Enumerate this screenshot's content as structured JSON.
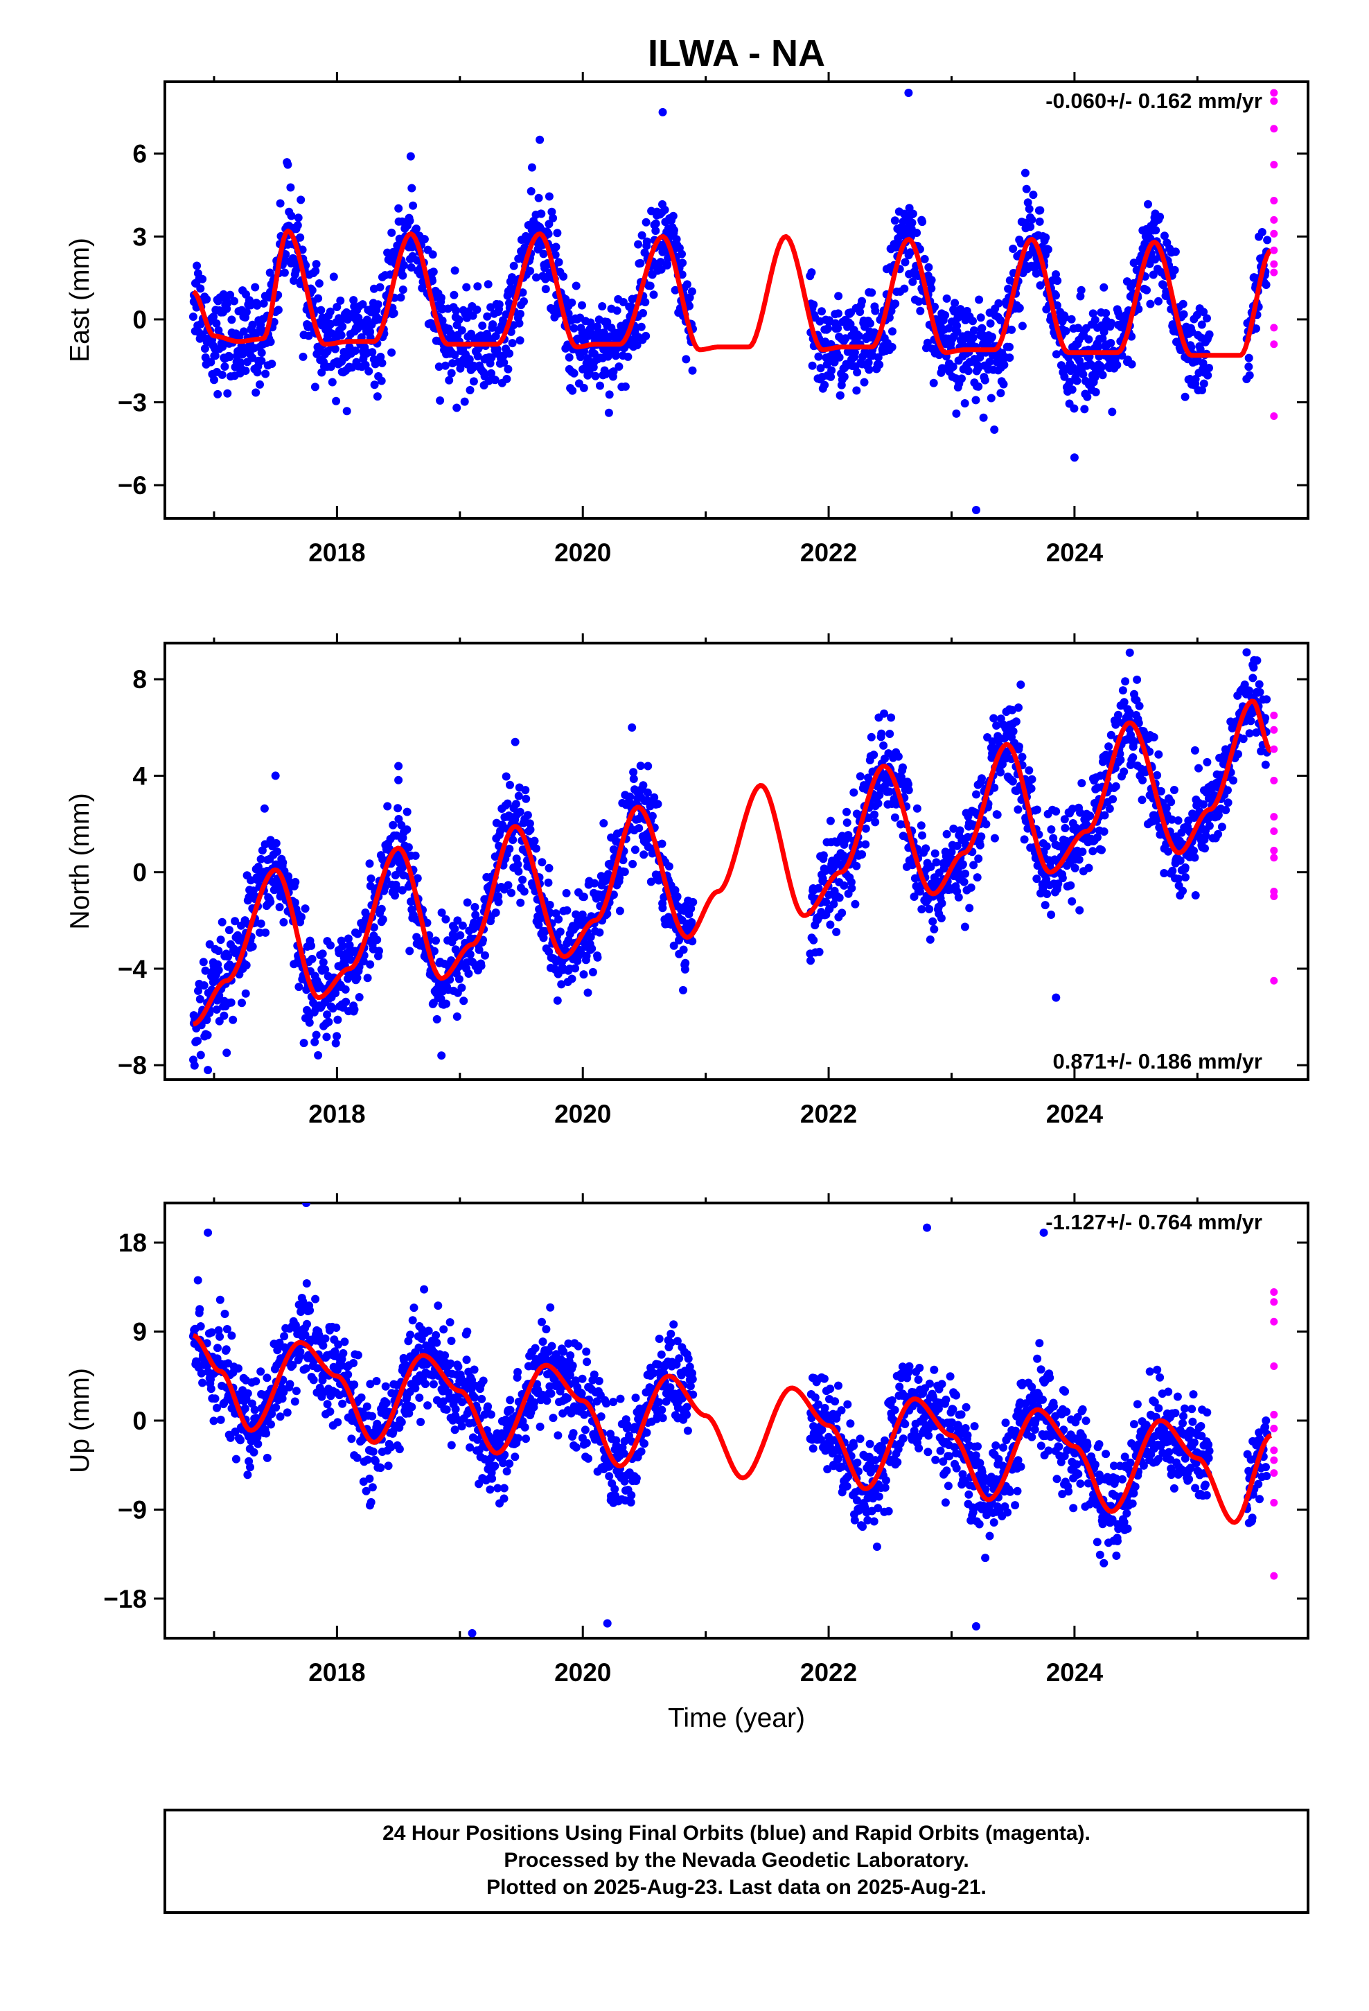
{
  "title": "ILWA - NA",
  "xlabel": "Time (year)",
  "footer_lines": [
    "24 Hour Positions Using Final Orbits (blue) and Rapid Orbits (magenta).",
    "Processed by the Nevada Geodetic Laboratory.",
    "Plotted on 2025-Aug-23. Last data on 2025-Aug-21."
  ],
  "colors": {
    "final": "#0000ff",
    "rapid": "#ff00ff",
    "model": "#ff0000",
    "frame": "#000000"
  },
  "chart_data": [
    {
      "type": "scatter",
      "ylabel": "East (mm)",
      "rate_label": "-0.060+/- 0.162 mm/yr",
      "xlim": [
        2016.6,
        2025.9
      ],
      "ylim": [
        -7.2,
        8.6
      ],
      "x_ticks": [
        2018,
        2020,
        2022,
        2024
      ],
      "y_ticks": [
        -6,
        -3,
        0,
        3,
        6
      ],
      "model_points": [
        [
          2016.83,
          1.0
        ],
        [
          2017.0,
          -0.6
        ],
        [
          2017.2,
          -0.8
        ],
        [
          2017.4,
          -0.7
        ],
        [
          2017.6,
          3.2
        ],
        [
          2017.9,
          -0.9
        ],
        [
          2018.1,
          -0.8
        ],
        [
          2018.3,
          -0.8
        ],
        [
          2018.6,
          3.1
        ],
        [
          2018.9,
          -0.9
        ],
        [
          2019.1,
          -0.9
        ],
        [
          2019.3,
          -0.9
        ],
        [
          2019.65,
          3.1
        ],
        [
          2019.95,
          -1.0
        ],
        [
          2020.1,
          -0.9
        ],
        [
          2020.3,
          -0.9
        ],
        [
          2020.65,
          3.0
        ],
        [
          2020.95,
          -1.1
        ],
        [
          2021.1,
          -1.0
        ],
        [
          2021.35,
          -1.0
        ],
        [
          2021.65,
          3.0
        ],
        [
          2021.95,
          -1.1
        ],
        [
          2022.1,
          -1.0
        ],
        [
          2022.35,
          -1.0
        ],
        [
          2022.65,
          2.9
        ],
        [
          2022.95,
          -1.2
        ],
        [
          2023.1,
          -1.1
        ],
        [
          2023.35,
          -1.1
        ],
        [
          2023.65,
          2.9
        ],
        [
          2023.95,
          -1.2
        ],
        [
          2024.1,
          -1.2
        ],
        [
          2024.35,
          -1.2
        ],
        [
          2024.65,
          2.8
        ],
        [
          2024.95,
          -1.3
        ],
        [
          2025.1,
          -1.3
        ],
        [
          2025.35,
          -1.3
        ],
        [
          2025.6,
          2.5
        ]
      ],
      "rapid_points": [
        [
          2025.6,
          8.2
        ],
        [
          2025.6,
          7.9
        ],
        [
          2025.6,
          6.9
        ],
        [
          2025.6,
          5.6
        ],
        [
          2025.6,
          4.3
        ],
        [
          2025.6,
          3.6
        ],
        [
          2025.6,
          3.1
        ],
        [
          2025.6,
          2.5
        ],
        [
          2025.6,
          2.0
        ],
        [
          2025.6,
          1.7
        ],
        [
          2025.6,
          -0.3
        ],
        [
          2025.6,
          -0.9
        ],
        [
          2025.6,
          -3.5
        ]
      ],
      "final_series": {
        "segments": [
          [
            2016.83,
            2020.9
          ],
          [
            2021.85,
            2025.1
          ],
          [
            2025.4,
            2025.57
          ]
        ],
        "outliers": [
          [
            2022.65,
            8.2
          ],
          [
            2020.65,
            7.5
          ],
          [
            2019.65,
            6.5
          ],
          [
            2018.6,
            5.9
          ],
          [
            2017.6,
            5.6
          ],
          [
            2023.6,
            5.3
          ],
          [
            2023.2,
            -6.9
          ],
          [
            2024.0,
            -5.0
          ]
        ],
        "note": "Daily East positions; seasonal envelope plotted around the model curve."
      }
    },
    {
      "type": "scatter",
      "ylabel": "North (mm)",
      "rate_label": "0.871+/- 0.186 mm/yr",
      "xlim": [
        2016.6,
        2025.9
      ],
      "ylim": [
        -8.6,
        9.5
      ],
      "x_ticks": [
        2018,
        2020,
        2022,
        2024
      ],
      "y_ticks": [
        -8,
        -4,
        0,
        4,
        8
      ],
      "model_points": [
        [
          2016.83,
          -6.3
        ],
        [
          2017.1,
          -4.5
        ],
        [
          2017.5,
          0.1
        ],
        [
          2017.85,
          -5.2
        ],
        [
          2018.1,
          -4.0
        ],
        [
          2018.5,
          1.0
        ],
        [
          2018.85,
          -4.4
        ],
        [
          2019.1,
          -3.0
        ],
        [
          2019.45,
          1.9
        ],
        [
          2019.85,
          -3.5
        ],
        [
          2020.1,
          -2.0
        ],
        [
          2020.45,
          2.7
        ],
        [
          2020.85,
          -2.7
        ],
        [
          2021.1,
          -0.8
        ],
        [
          2021.45,
          3.6
        ],
        [
          2021.8,
          -1.8
        ],
        [
          2022.1,
          0.0
        ],
        [
          2022.45,
          4.4
        ],
        [
          2022.85,
          -0.9
        ],
        [
          2023.1,
          0.8
        ],
        [
          2023.45,
          5.3
        ],
        [
          2023.8,
          0.0
        ],
        [
          2024.1,
          1.7
        ],
        [
          2024.45,
          6.2
        ],
        [
          2024.85,
          0.8
        ],
        [
          2025.1,
          2.6
        ],
        [
          2025.45,
          7.1
        ],
        [
          2025.6,
          5.0
        ]
      ],
      "rapid_points": [
        [
          2025.6,
          6.5
        ],
        [
          2025.6,
          5.9
        ],
        [
          2025.6,
          5.1
        ],
        [
          2025.6,
          3.8
        ],
        [
          2025.6,
          2.3
        ],
        [
          2025.6,
          1.7
        ],
        [
          2025.6,
          0.9
        ],
        [
          2025.6,
          0.6
        ],
        [
          2025.6,
          -0.8
        ],
        [
          2025.6,
          -1.0
        ],
        [
          2025.6,
          -4.5
        ]
      ],
      "final_series": {
        "segments": [
          [
            2016.83,
            2020.9
          ],
          [
            2021.85,
            2025.57
          ]
        ],
        "outliers": [
          [
            2024.45,
            9.1
          ],
          [
            2025.45,
            8.6
          ],
          [
            2020.4,
            6.0
          ],
          [
            2017.5,
            4.0
          ],
          [
            2018.5,
            4.4
          ],
          [
            2019.45,
            5.4
          ],
          [
            2023.85,
            -5.2
          ],
          [
            2016.95,
            -8.2
          ],
          [
            2018.85,
            -7.6
          ]
        ],
        "note": "Daily North positions; seasonal envelope plotted around the model curve."
      }
    },
    {
      "type": "scatter",
      "ylabel": "Up (mm)",
      "rate_label": "-1.127+/- 0.764 mm/yr",
      "xlim": [
        2016.6,
        2025.9
      ],
      "ylim": [
        -22.0,
        22.0
      ],
      "x_ticks": [
        2018,
        2020,
        2022,
        2024
      ],
      "y_ticks": [
        -18,
        -9,
        0,
        9,
        18
      ],
      "model_points": [
        [
          2016.83,
          8.6
        ],
        [
          2017.05,
          5.0
        ],
        [
          2017.3,
          -1.0
        ],
        [
          2017.7,
          7.9
        ],
        [
          2018.0,
          4.5
        ],
        [
          2018.3,
          -2.2
        ],
        [
          2018.7,
          6.6
        ],
        [
          2019.0,
          3.0
        ],
        [
          2019.3,
          -3.3
        ],
        [
          2019.7,
          5.6
        ],
        [
          2020.0,
          2.0
        ],
        [
          2020.3,
          -4.6
        ],
        [
          2020.7,
          4.5
        ],
        [
          2021.0,
          0.5
        ],
        [
          2021.3,
          -5.8
        ],
        [
          2021.7,
          3.3
        ],
        [
          2022.0,
          -0.5
        ],
        [
          2022.3,
          -6.9
        ],
        [
          2022.7,
          2.2
        ],
        [
          2023.0,
          -1.5
        ],
        [
          2023.3,
          -8.0
        ],
        [
          2023.7,
          1.1
        ],
        [
          2024.0,
          -2.6
        ],
        [
          2024.3,
          -9.2
        ],
        [
          2024.7,
          0.0
        ],
        [
          2025.0,
          -3.8
        ],
        [
          2025.3,
          -10.3
        ],
        [
          2025.6,
          -1.5
        ]
      ],
      "rapid_points": [
        [
          2025.6,
          13.0
        ],
        [
          2025.6,
          12.0
        ],
        [
          2025.6,
          10.0
        ],
        [
          2025.6,
          5.5
        ],
        [
          2025.6,
          0.6
        ],
        [
          2025.6,
          -0.8
        ],
        [
          2025.6,
          -3.0
        ],
        [
          2025.6,
          -4.0
        ],
        [
          2025.6,
          -5.3
        ],
        [
          2025.6,
          -8.3
        ],
        [
          2025.6,
          -15.7
        ]
      ],
      "final_series": {
        "segments": [
          [
            2016.83,
            2020.9
          ],
          [
            2021.85,
            2025.1
          ],
          [
            2025.4,
            2025.57
          ]
        ],
        "outliers": [
          [
            2017.75,
            22.0
          ],
          [
            2022.8,
            19.5
          ],
          [
            2016.95,
            19.0
          ],
          [
            2023.75,
            19.0
          ],
          [
            2019.1,
            -21.5
          ],
          [
            2023.2,
            -20.8
          ],
          [
            2020.2,
            -20.5
          ]
        ],
        "note": "Daily Up positions; seasonal envelope plotted around the model curve."
      }
    }
  ]
}
